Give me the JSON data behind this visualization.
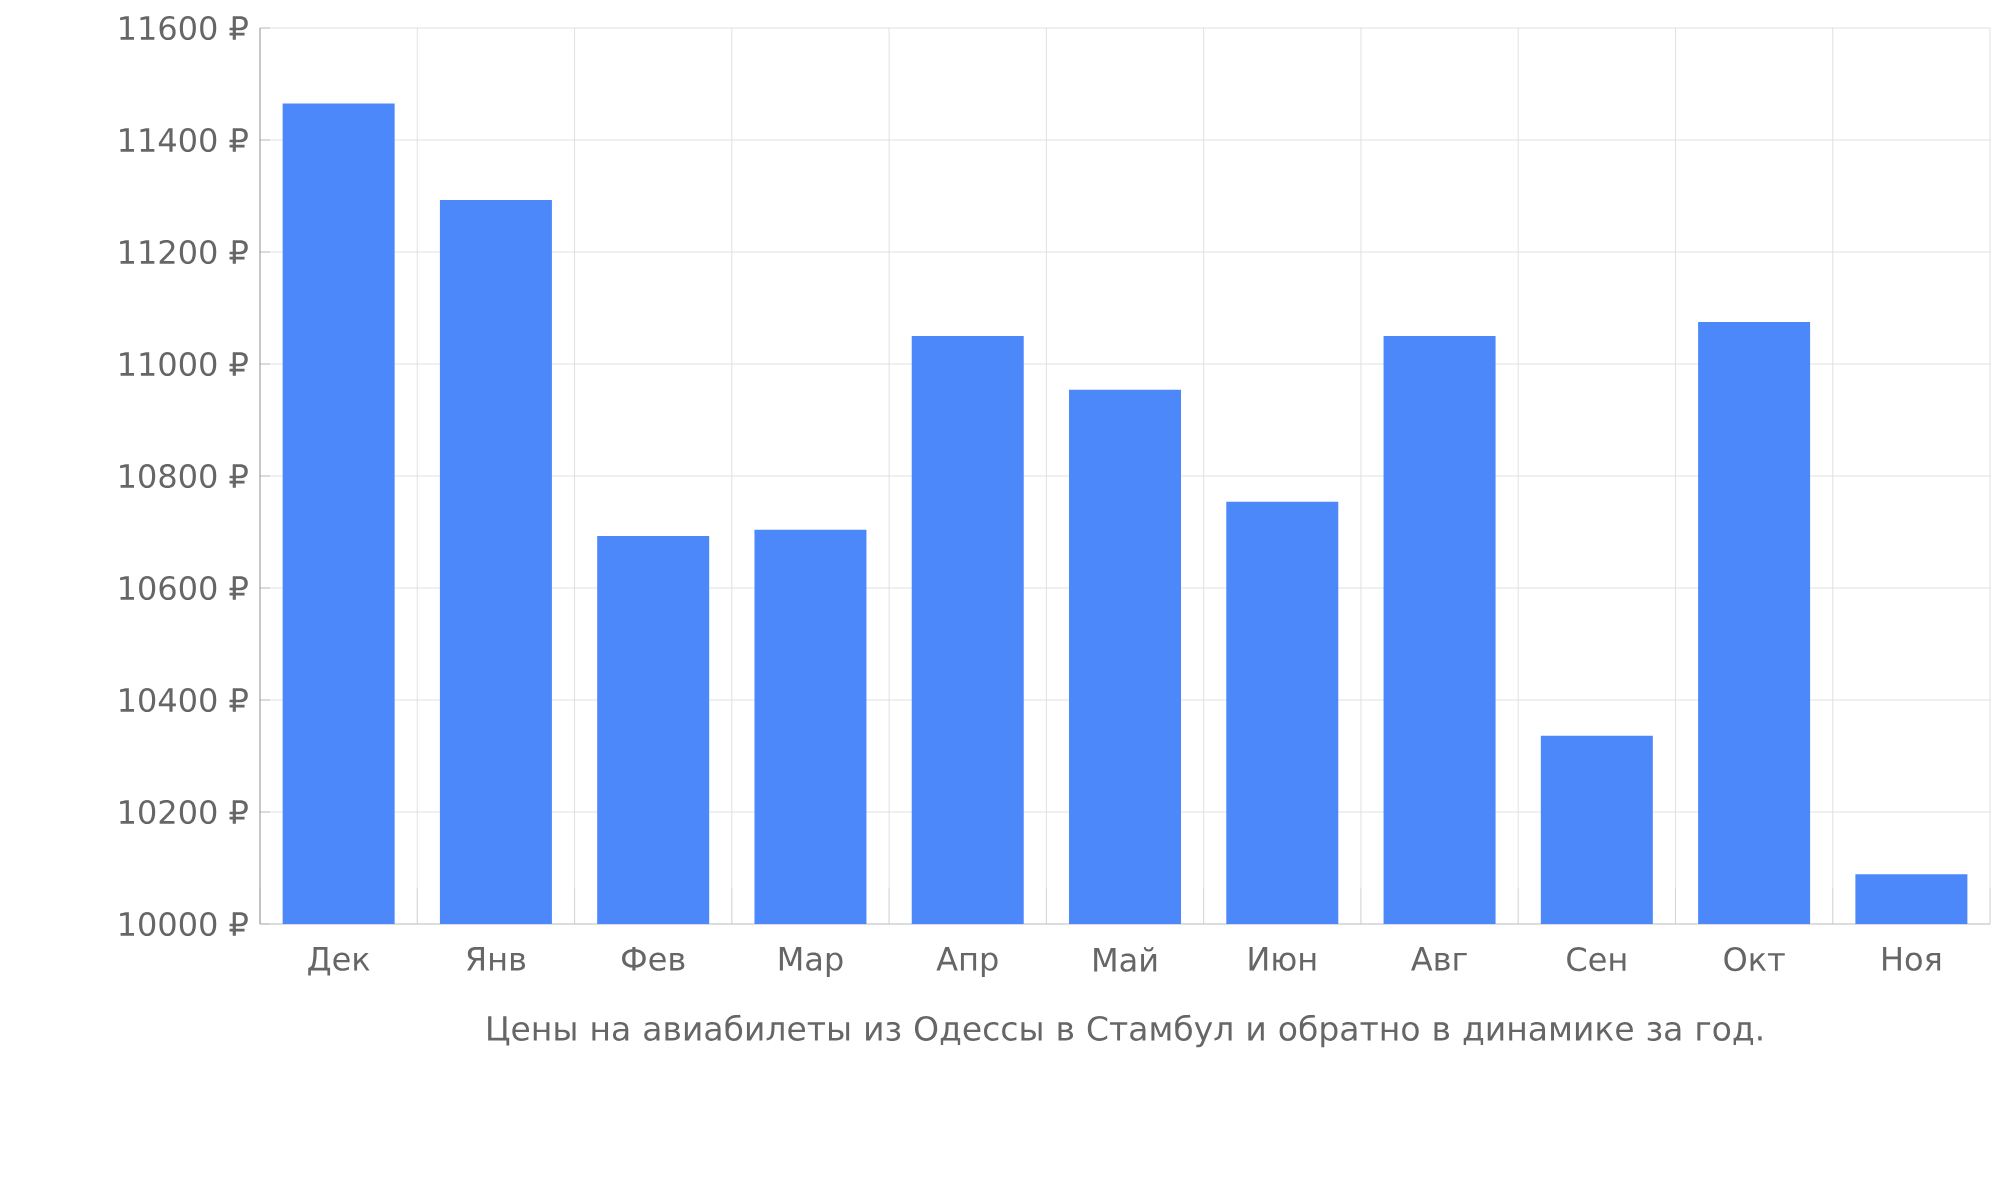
{
  "chart_data": {
    "type": "bar",
    "xlabel": "Цены на авиабилеты из Одессы в Стамбул и обратно в динамике за год.",
    "categories": [
      "Дек",
      "Янв",
      "Фев",
      "Мар",
      "Апр",
      "Май",
      "Июн",
      "Авг",
      "Сен",
      "Окт",
      "Ноя"
    ],
    "values": [
      11465,
      11293,
      10693,
      10704,
      11050,
      10954,
      10754,
      11050,
      10336,
      11075,
      10089
    ],
    "color": "#4d88fb",
    "ylim": [
      10000,
      11600
    ],
    "yticks": [
      {
        "value": 10000,
        "label": "10000 ₽"
      },
      {
        "value": 10200,
        "label": "10200 ₽"
      },
      {
        "value": 10400,
        "label": "10400 ₽"
      },
      {
        "value": 10600,
        "label": "10600 ₽"
      },
      {
        "value": 10800,
        "label": "10800 ₽"
      },
      {
        "value": 11000,
        "label": "11000 ₽"
      },
      {
        "value": 11200,
        "label": "11200 ₽"
      },
      {
        "value": 11400,
        "label": "11400 ₽"
      },
      {
        "value": 11600,
        "label": "11600 ₽"
      }
    ],
    "grid": true
  }
}
